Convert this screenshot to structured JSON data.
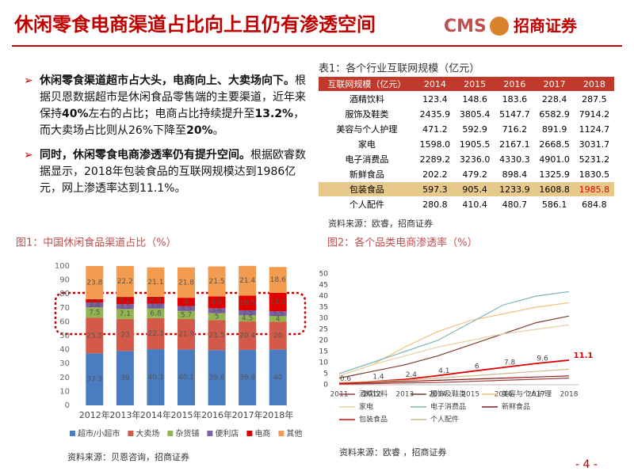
{
  "header": {
    "title": "休闲零食电商渠道占比向上且仍有渗透空间",
    "logo_text": "CMS",
    "company": "招商证券"
  },
  "bullets": [
    {
      "runs": [
        {
          "text": "休闲零食渠道超市占大头，电商向上、大卖场向下。",
          "bold": true
        },
        {
          "text": "根据贝恩数据超市是休闲食品零售端的主要渠道，近年来保持",
          "bold": false
        },
        {
          "text": "40%",
          "bold": true
        },
        {
          "text": "左右的占比；电商占比持续提升至",
          "bold": false
        },
        {
          "text": "13.2%",
          "bold": true
        },
        {
          "text": "，而大卖场占比则从26%下降至",
          "bold": false
        },
        {
          "text": "20%",
          "bold": true
        },
        {
          "text": "。",
          "bold": false
        }
      ]
    },
    {
      "runs": [
        {
          "text": "同时，休闲零食电商渗透率仍有提升空间。",
          "bold": true
        },
        {
          "text": "根据欧睿数据显示，2018年包装食品的互联网规模达到1986亿元，网上渗透率达到11.1%。",
          "bold": false
        }
      ]
    }
  ],
  "table": {
    "title": "表1：各个行业互联网规模（亿元）",
    "columns": [
      "互联网规模（亿元）",
      "2014",
      "2015",
      "2016",
      "2017",
      "2018"
    ],
    "rows": [
      [
        "酒精饮料",
        "123.4",
        "148.6",
        "183.6",
        "228.4",
        "287.5"
      ],
      [
        "服饰及鞋类",
        "2435.9",
        "3805.4",
        "5147.7",
        "6582.9",
        "7914.2"
      ],
      [
        "美容与个人护理",
        "471.2",
        "592.9",
        "716.2",
        "891.9",
        "1124.7"
      ],
      [
        "家电",
        "1598.0",
        "1905.5",
        "2167.1",
        "2668.5",
        "3031.7"
      ],
      [
        "电子消费品",
        "2289.2",
        "3236.0",
        "4330.3",
        "4901.0",
        "5231.2"
      ],
      [
        "新鲜食品",
        "202.2",
        "479.2",
        "898.4",
        "1325.9",
        "1830.5"
      ],
      [
        "包装食品",
        "597.3",
        "905.4",
        "1233.9",
        "1608.8",
        "1985.8"
      ],
      [
        "个人配件",
        "280.8",
        "410.4",
        "480.7",
        "586.1",
        "684.8"
      ]
    ],
    "highlight_row": 6,
    "source": "资料来源：欧睿，招商证券"
  },
  "chart_data": [
    {
      "type": "bar",
      "stacked": true,
      "title": "图1：中国休闲食品渠道占比（%）",
      "categories": [
        "2012年",
        "2013年",
        "2014年",
        "2015年",
        "2016年",
        "2017年",
        "2018年"
      ],
      "series": [
        {
          "name": "超市/小超市",
          "color": "#4a7cc2",
          "values": [
            37.3,
            39,
            40.3,
            40.1,
            39.6,
            39.8,
            40
          ]
        },
        {
          "name": "大卖场",
          "color": "#d35a48",
          "values": [
            25.5,
            23,
            22.3,
            21.9,
            21.5,
            20.4,
            20
          ]
        },
        {
          "name": "杂货铺",
          "color": "#92b54f",
          "values": [
            7.5,
            7.1,
            6.8,
            5.7,
            5,
            4.5,
            4
          ]
        },
        {
          "name": "便利店",
          "color": "#7d61a8",
          "values": [
            3.4,
            3.5,
            3.6,
            3.5,
            3.6,
            3.5,
            3.5
          ]
        },
        {
          "name": "电商",
          "color": "#e00000",
          "values": [
            2.5,
            5.2,
            4.9,
            6,
            8.5,
            10.5,
            13.2
          ]
        },
        {
          "name": "其他",
          "color": "#f39c4f",
          "values": [
            23.8,
            22.2,
            21.1,
            21.8,
            21.5,
            21.4,
            18.6
          ]
        }
      ],
      "ylim": [
        0,
        100
      ],
      "yticks": [
        0,
        10,
        20,
        30,
        40,
        50,
        60,
        70,
        80,
        90,
        100
      ],
      "show_labels": true,
      "source": "资料来源：贝恩咨询，招商证券"
    },
    {
      "type": "line",
      "title": "图2：各个品类电商渗透率（%）",
      "x": [
        2011,
        2012,
        2013,
        2014,
        2015,
        2016,
        2017,
        2018
      ],
      "xlim": [
        2011,
        2018
      ],
      "xticks": [
        2011,
        2012,
        2013,
        2014,
        2015,
        2016,
        2017,
        2018
      ],
      "ylim": [
        0,
        50
      ],
      "yticks": [
        0,
        5,
        10,
        15,
        20,
        25,
        30,
        35,
        40,
        45,
        50
      ],
      "series": [
        {
          "name": "酒精饮料",
          "color": "#a0403a",
          "values": [
            0.3,
            0.5,
            0.8,
            1,
            1.5,
            2,
            2.5,
            3
          ]
        },
        {
          "name": "服饰及鞋类",
          "color": "#7a3b2e",
          "values": [
            3,
            6,
            9,
            13,
            18,
            23,
            28,
            31
          ]
        },
        {
          "name": "美容与个人护理",
          "color": "#f2c27c",
          "values": [
            4,
            9,
            17,
            24,
            29,
            32,
            35,
            37
          ]
        },
        {
          "name": "家电",
          "color": "#e6d0a4",
          "values": [
            4,
            9,
            13,
            17,
            20,
            23,
            25,
            27
          ]
        },
        {
          "name": "电子消费品",
          "color": "#7fb8b8",
          "values": [
            5,
            10,
            15,
            20,
            28,
            36,
            40,
            42
          ]
        },
        {
          "name": "新鲜食品",
          "color": "#8b1a1a",
          "values": [
            0.5,
            1,
            1.5,
            2,
            2.5,
            3,
            3.5,
            4
          ]
        },
        {
          "name": "包装食品",
          "color": "#e00000",
          "values": [
            0.6,
            1.4,
            2.4,
            4.1,
            6,
            7.8,
            9.6,
            11.1
          ],
          "show_labels": true
        },
        {
          "name": "个人配件",
          "color": "#c9b98c",
          "values": [
            1,
            1.5,
            2,
            3,
            4,
            5,
            6,
            7
          ]
        }
      ],
      "source": "资料来源：欧睿 ，招商证券"
    }
  ],
  "footer": {
    "page": "- 4 -"
  }
}
